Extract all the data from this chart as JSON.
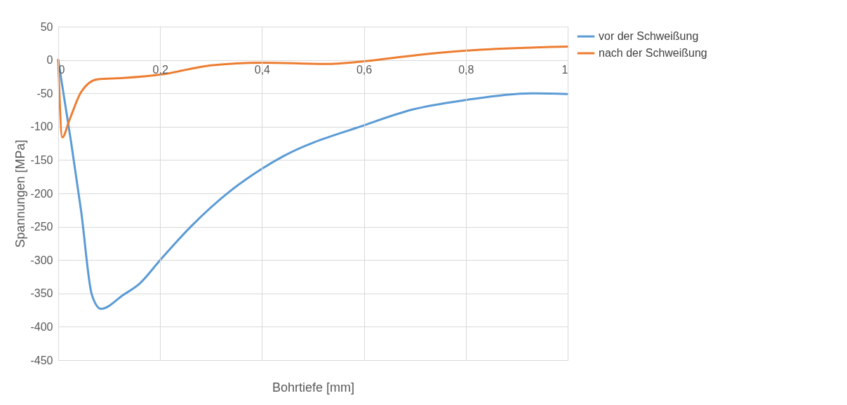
{
  "chart_data": {
    "type": "line",
    "xlabel": "Bohrtiefe [mm]",
    "ylabel": "Spannungen [MPa]",
    "xlim": [
      0,
      1
    ],
    "xticks": [
      0,
      {
        "value": 0.2,
        "label": "0,2"
      },
      {
        "value": 0.4,
        "label": "0,4"
      },
      {
        "value": 0.6,
        "label": "0,6"
      },
      {
        "value": 0.8,
        "label": "0,8"
      },
      1
    ],
    "ylim": [
      -450,
      50
    ],
    "yticks": [
      -450,
      -400,
      -350,
      -300,
      -250,
      -200,
      -150,
      -100,
      -50,
      0,
      50
    ],
    "grid": true,
    "legend": "right",
    "line_style": "solid",
    "marker": "none",
    "series": [
      {
        "name": "vor der Schweißung",
        "color": "#5b9bd5",
        "x": [
          0,
          0.025,
          0.045,
          0.066,
          0.084,
          0.128,
          0.16,
          0.2,
          0.26,
          0.335,
          0.4,
          0.44,
          0.6,
          0.697,
          0.8,
          0.927,
          1
        ],
        "values": [
          0,
          -122,
          -227,
          -352,
          -373,
          -352,
          -335,
          -300,
          -250,
          -198,
          -163,
          -145,
          -98,
          -74,
          -60,
          -50,
          -51
        ]
      },
      {
        "name": "nach der Schweißung",
        "color": "#ed7d31",
        "x": [
          0,
          0.008,
          0.022,
          0.045,
          0.077,
          0.128,
          0.2,
          0.3,
          0.4,
          0.523,
          0.6,
          0.7,
          0.8,
          1
        ],
        "values": [
          0,
          -116,
          -90,
          -48,
          -29,
          -27,
          -22,
          -8,
          -4,
          -6,
          -2,
          7,
          14,
          20
        ]
      }
    ]
  }
}
